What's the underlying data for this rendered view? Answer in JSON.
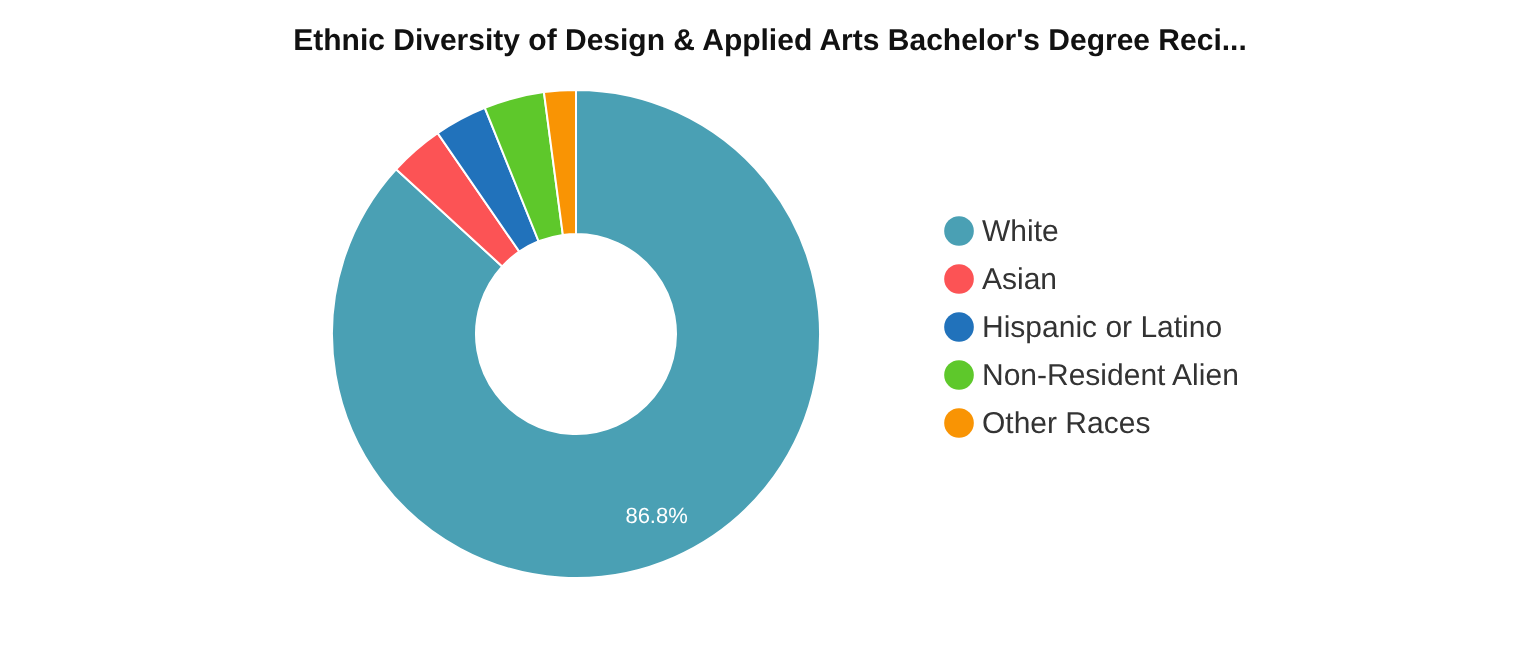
{
  "chart_data": {
    "type": "donut",
    "title": "Ethnic Diversity of Design & Applied Arts Bachelor's Degree Reci...",
    "categories": [
      "White",
      "Asian",
      "Hispanic or Latino",
      "Non-Resident Alien",
      "Other Races"
    ],
    "values": [
      86.8,
      3.6,
      3.5,
      4.0,
      2.1
    ],
    "colors": [
      "#4aa0b4",
      "#fc5355",
      "#2172bb",
      "#5ec82b",
      "#f99404"
    ],
    "value_labels": [
      "86.8%",
      null,
      null,
      null,
      null
    ],
    "legend": "right"
  }
}
